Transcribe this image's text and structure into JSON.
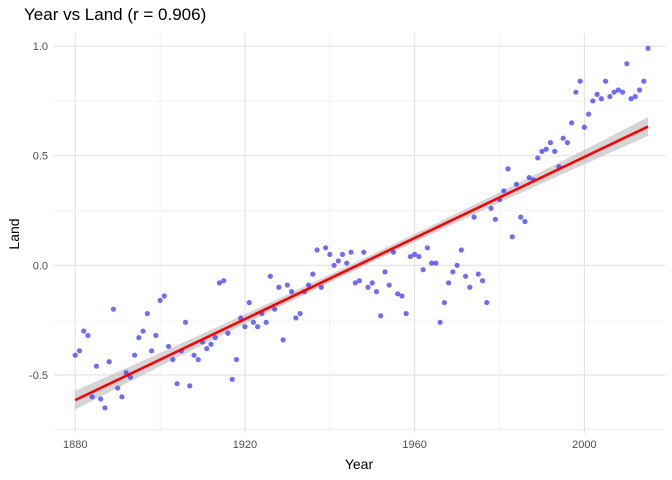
{
  "chart_data": {
    "type": "scatter",
    "title": "Year vs Land (r = 0.906)",
    "xlabel": "Year",
    "ylabel": "Land",
    "xlim": [
      1875,
      2019
    ],
    "ylim": [
      -0.765,
      1.06
    ],
    "x_ticks": [
      1880,
      1920,
      1960,
      2000
    ],
    "x_tick_labels": [
      "1880",
      "1920",
      "1960",
      "2000"
    ],
    "y_ticks": [
      -0.5,
      0.0,
      0.5,
      1.0
    ],
    "y_tick_labels": [
      "-0.5",
      "0.0",
      "0.5",
      "1.0"
    ],
    "grid": true,
    "legend": "none",
    "point_color": "#3333ff",
    "fit_color": "#ff0000",
    "band_color": "#b3b3b3",
    "x": [
      1880,
      1881,
      1882,
      1883,
      1884,
      1885,
      1886,
      1887,
      1888,
      1889,
      1890,
      1891,
      1892,
      1893,
      1894,
      1895,
      1896,
      1897,
      1898,
      1899,
      1900,
      1901,
      1902,
      1903,
      1904,
      1905,
      1906,
      1907,
      1908,
      1909,
      1910,
      1911,
      1912,
      1913,
      1914,
      1915,
      1916,
      1917,
      1918,
      1919,
      1920,
      1921,
      1922,
      1923,
      1924,
      1925,
      1926,
      1927,
      1928,
      1929,
      1930,
      1931,
      1932,
      1933,
      1934,
      1935,
      1936,
      1937,
      1938,
      1939,
      1940,
      1941,
      1942,
      1943,
      1944,
      1945,
      1946,
      1947,
      1948,
      1949,
      1950,
      1951,
      1952,
      1953,
      1954,
      1955,
      1956,
      1957,
      1958,
      1959,
      1960,
      1961,
      1962,
      1963,
      1964,
      1965,
      1966,
      1967,
      1968,
      1969,
      1970,
      1971,
      1972,
      1973,
      1974,
      1975,
      1976,
      1977,
      1978,
      1979,
      1980,
      1981,
      1982,
      1983,
      1984,
      1985,
      1986,
      1987,
      1988,
      1989,
      1990,
      1991,
      1992,
      1993,
      1994,
      1995,
      1996,
      1997,
      1998,
      1999,
      2000,
      2001,
      2002,
      2003,
      2004,
      2005,
      2006,
      2007,
      2008,
      2009,
      2010,
      2011,
      2012,
      2013,
      2014,
      2015
    ],
    "y": [
      -0.41,
      -0.39,
      -0.3,
      -0.32,
      -0.6,
      -0.46,
      -0.61,
      -0.65,
      -0.44,
      -0.2,
      -0.56,
      -0.6,
      -0.49,
      -0.51,
      -0.41,
      -0.33,
      -0.3,
      -0.22,
      -0.39,
      -0.32,
      -0.16,
      -0.14,
      -0.37,
      -0.43,
      -0.54,
      -0.39,
      -0.26,
      -0.55,
      -0.41,
      -0.43,
      -0.35,
      -0.38,
      -0.36,
      -0.33,
      -0.08,
      -0.07,
      -0.31,
      -0.52,
      -0.43,
      -0.24,
      -0.28,
      -0.17,
      -0.26,
      -0.28,
      -0.22,
      -0.26,
      -0.05,
      -0.2,
      -0.1,
      -0.34,
      -0.09,
      -0.12,
      -0.24,
      -0.22,
      -0.12,
      -0.09,
      -0.04,
      0.07,
      -0.1,
      0.08,
      0.05,
      0.0,
      0.02,
      0.05,
      0.01,
      0.06,
      -0.08,
      -0.07,
      0.06,
      -0.1,
      -0.08,
      -0.12,
      -0.23,
      -0.03,
      -0.09,
      0.06,
      -0.13,
      -0.14,
      -0.22,
      0.04,
      0.05,
      0.04,
      -0.02,
      0.08,
      0.01,
      0.01,
      -0.26,
      -0.17,
      -0.08,
      -0.03,
      0.0,
      0.07,
      -0.05,
      -0.1,
      0.22,
      -0.04,
      -0.07,
      -0.17,
      0.26,
      0.21,
      0.3,
      0.34,
      0.44,
      0.13,
      0.37,
      0.22,
      0.2,
      0.4,
      0.39,
      0.49,
      0.52,
      0.53,
      0.56,
      0.52,
      0.45,
      0.58,
      0.56,
      0.65,
      0.79,
      0.84,
      0.63,
      0.69,
      0.75,
      0.78,
      0.76,
      0.84,
      0.77,
      0.79,
      0.8,
      0.79,
      0.92,
      0.76,
      0.77,
      0.8,
      0.84,
      0.99
    ],
    "fit": {
      "x": [
        1880,
        2015
      ],
      "y": [
        -0.615,
        0.633
      ]
    },
    "band": {
      "x": [
        1880,
        1947.5,
        2015
      ],
      "halfwidth": [
        0.043,
        0.018,
        0.043
      ]
    }
  }
}
